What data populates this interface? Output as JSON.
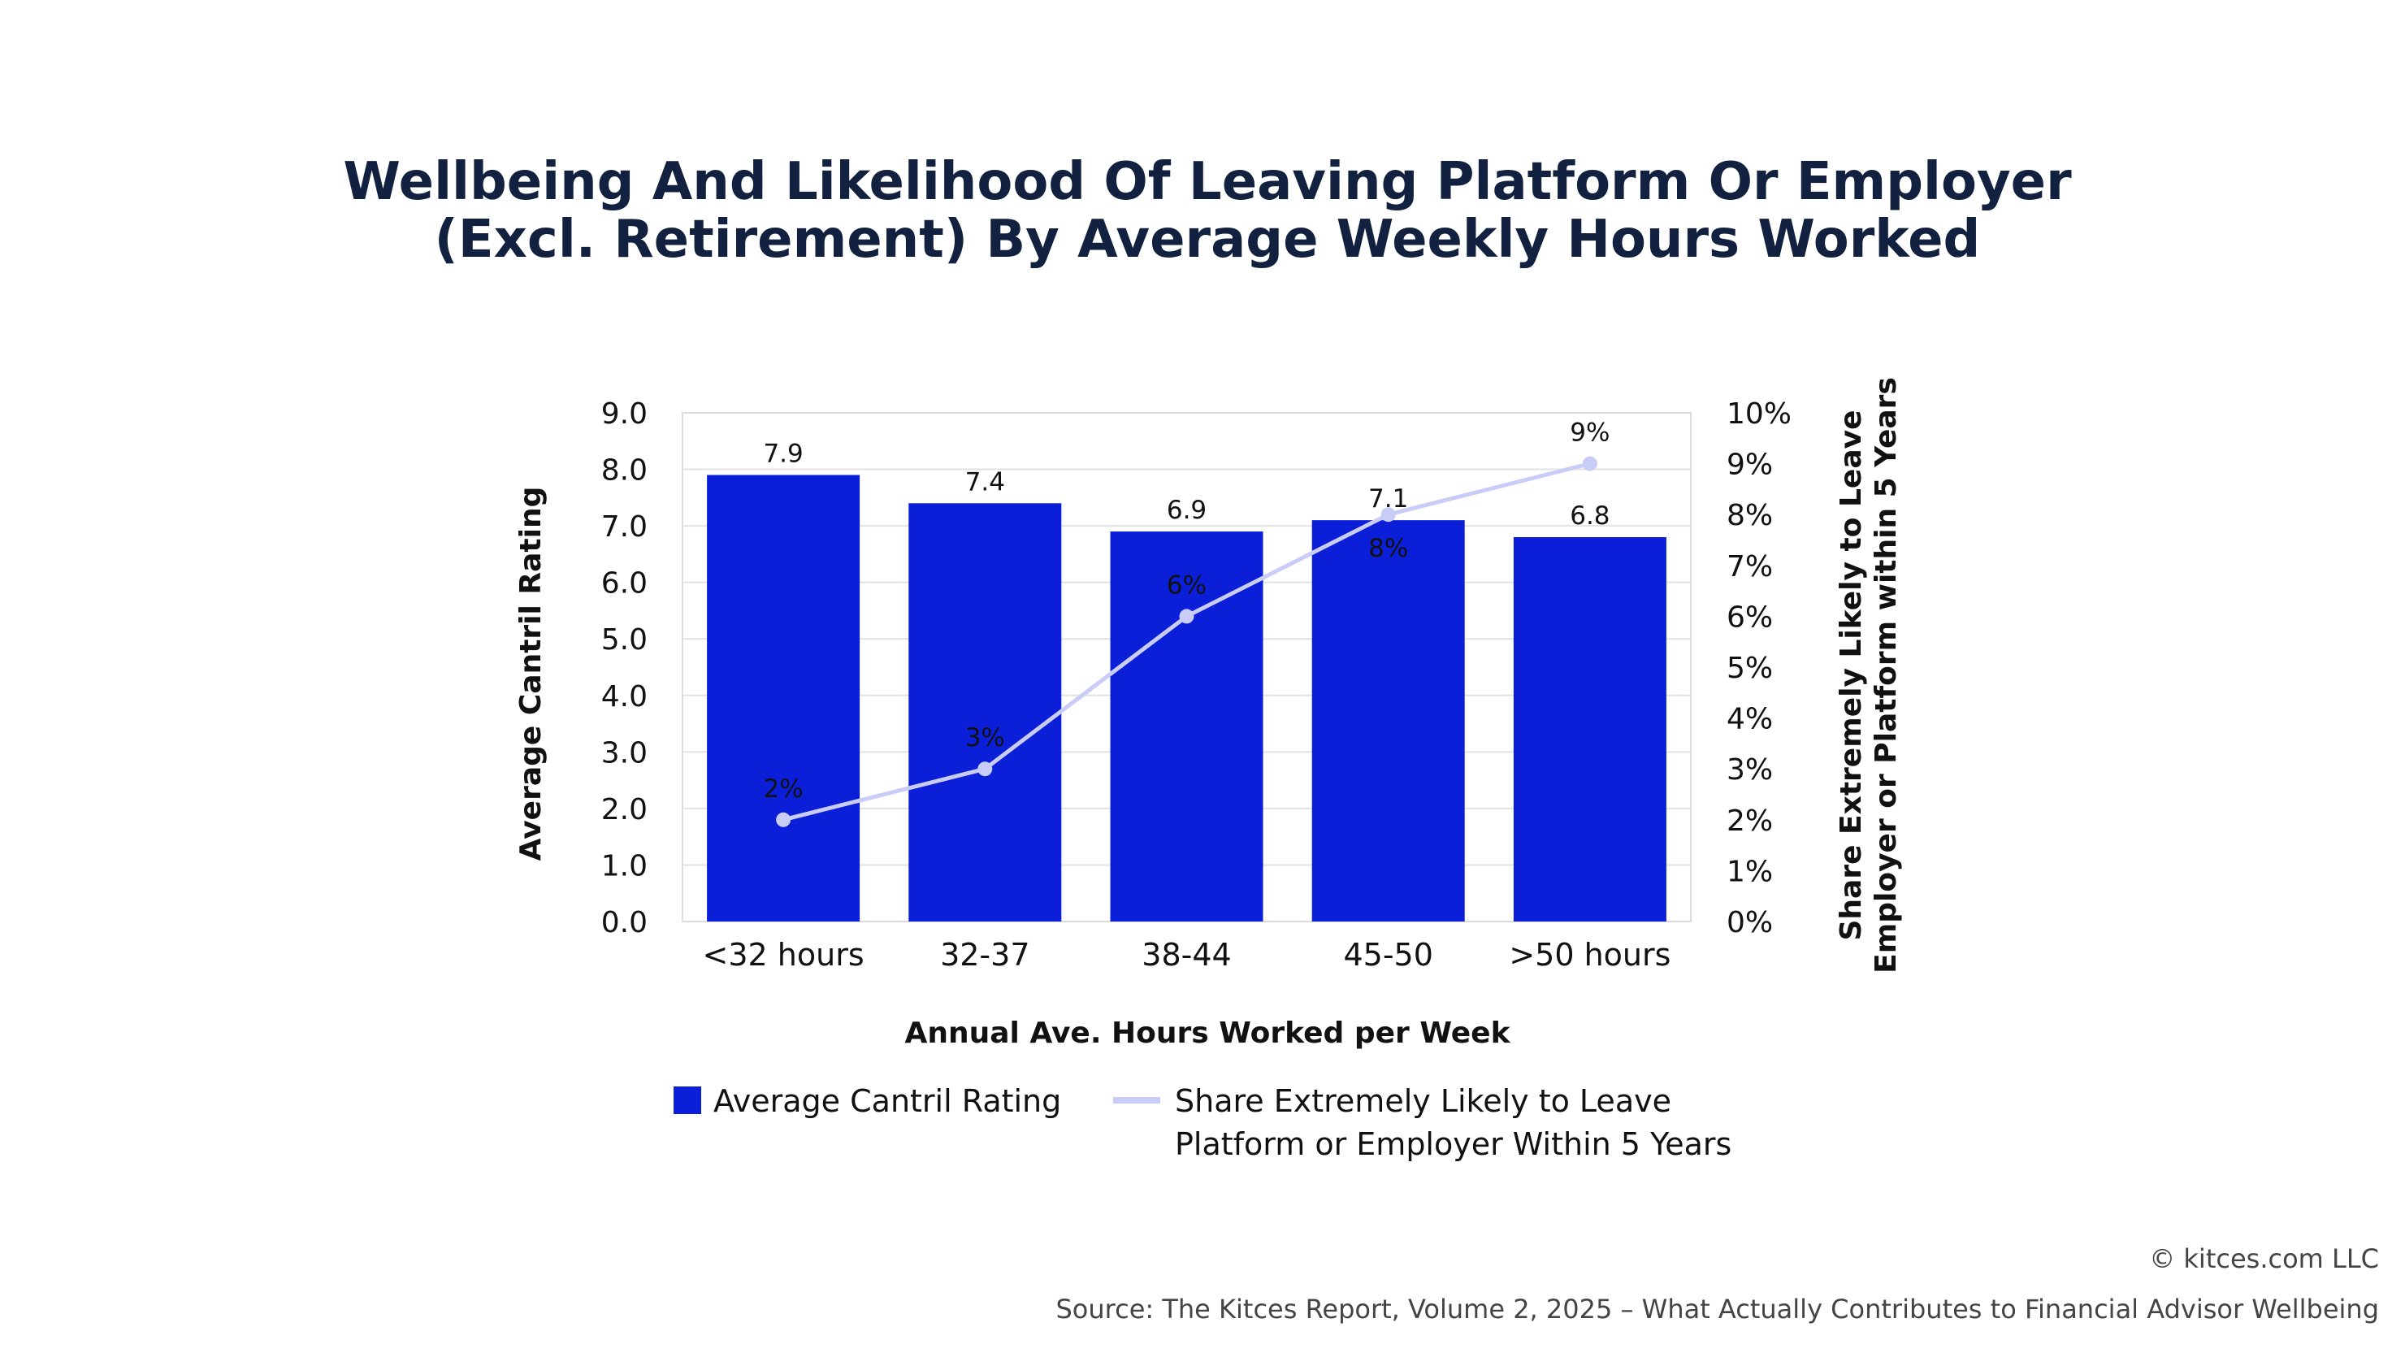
{
  "chart_data": {
    "type": "bar+line",
    "title": [
      "Wellbeing And Likelihood Of Leaving Platform Or Employer",
      "(Excl. Retirement) By Average Weekly Hours Worked"
    ],
    "xlabel": "Annual Ave. Hours Worked per Week",
    "ylabel": "Average Cantril Rating",
    "y2label": [
      "Share Extremely Likely to Leave",
      "Employer or Platform within 5 Years"
    ],
    "categories": [
      "<32 hours",
      "32-37",
      "38-44",
      "45-50",
      ">50 hours"
    ],
    "ylim": [
      0,
      9
    ],
    "yticks": [
      "0.0",
      "1.0",
      "2.0",
      "3.0",
      "4.0",
      "5.0",
      "6.0",
      "7.0",
      "8.0",
      "9.0"
    ],
    "y2lim": [
      0,
      10
    ],
    "y2ticks": [
      "0%",
      "1%",
      "2%",
      "3%",
      "4%",
      "5%",
      "6%",
      "7%",
      "8%",
      "9%",
      "10%"
    ],
    "grid": true,
    "legend_placement": "bottom",
    "series": [
      {
        "name": "Average Cantril Rating",
        "type": "bar",
        "axis": "left",
        "color": "#0b1fd8",
        "values": [
          7.9,
          7.4,
          6.9,
          7.1,
          6.8
        ],
        "labels": [
          "7.9",
          "7.4",
          "6.9",
          "7.1",
          "6.8"
        ]
      },
      {
        "name": "Share Extremely Likely to Leave Platform or Employer Within 5 Years",
        "type": "line",
        "axis": "right",
        "color": "#c8ccf6",
        "values": [
          2,
          3,
          6,
          8,
          9
        ],
        "labels": [
          "2%",
          "3%",
          "6%",
          "8%",
          "9%"
        ]
      }
    ],
    "legend": [
      "Average Cantril Rating",
      [
        "Share Extremely Likely to Leave",
        "Platform or Employer Within 5 Years"
      ]
    ]
  },
  "footer": {
    "copyright": "© kitces.com LLC",
    "source": "Source: The Kitces Report, Volume 2, 2025 – What Actually Contributes to Financial Advisor Wellbeing"
  }
}
